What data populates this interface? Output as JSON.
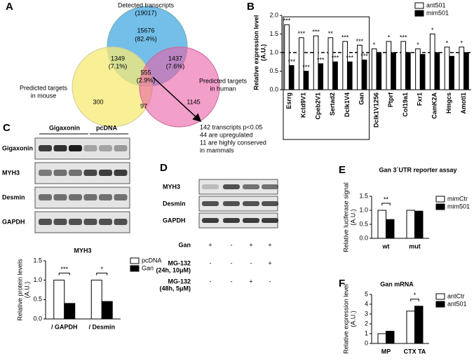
{
  "panels": {
    "labels": [
      "A",
      "B",
      "C",
      "D",
      "E",
      "F"
    ]
  },
  "venn": {
    "detected": [
      "Detected transcripts",
      "(19017)"
    ],
    "only_detected": [
      15676,
      "(82.4%)"
    ],
    "detected_mouse": [
      1349,
      "(7.1%)"
    ],
    "detected_human": [
      1437,
      "(7.6%)"
    ],
    "all_three": [
      555,
      "(2.9%)"
    ],
    "mouse_label": [
      "Predicted targets",
      "in mouse"
    ],
    "human_label": [
      "Predicted targets",
      "in human"
    ],
    "only_mouse": 300,
    "mouse_human": 97,
    "only_human": 1145,
    "note": [
      "142 transcripts p<0.05",
      "44 are upregulated",
      "11 are highly conserved",
      "in mammals"
    ]
  },
  "blot_c": {
    "headers": [
      "Gigaxonin",
      "pcDNA"
    ],
    "rows": [
      "Gigaxonin",
      "MYH3",
      "Desmin",
      "GAPDH"
    ]
  },
  "blot_d": {
    "rows": [
      "MYH3",
      "Desmin",
      "GAPDH"
    ],
    "conditions": [
      {
        "label": [
          "Gan"
        ],
        "signs": [
          "+",
          "-",
          "+",
          "+"
        ]
      },
      {
        "label": [
          "MG-132",
          "(24h, 10μM)"
        ],
        "signs": [
          "-",
          "-",
          "-",
          "+"
        ]
      },
      {
        "label": [
          "MG-132",
          "(48h, 5μM)"
        ],
        "signs": [
          "-",
          "-",
          "+",
          "-"
        ]
      }
    ]
  },
  "chart_data": [
    {
      "type": "bar",
      "ylabel": [
        "Relative expression level",
        "(A.U.)"
      ],
      "categories": [
        "Esrrg",
        "Kctd9V1",
        "Cpeb2V1",
        "Sertad2",
        "Dclk1V4",
        "Gan",
        "Dclk1V1256",
        "Ptprf",
        "Col19a1",
        "Fxr1",
        "CamK2A",
        "Hmgcs",
        "Amotl1"
      ],
      "series": [
        {
          "name": "ant501",
          "color": "#ffffff",
          "values": [
            1.75,
            1.4,
            1.45,
            1.4,
            1.3,
            1.2,
            1.1,
            1.3,
            1.3,
            1.1,
            1.5,
            1.15,
            1.15
          ],
          "stars": [
            "***",
            "***",
            "***",
            "**",
            "***",
            "***",
            "*",
            "*",
            "***",
            "*",
            "*",
            "*",
            "*"
          ]
        },
        {
          "name": "mim501",
          "color": "#000000",
          "values": [
            0.65,
            0.5,
            0.7,
            0.75,
            0.75,
            0.8,
            1.0,
            1.0,
            1.0,
            0.95,
            1.0,
            0.9,
            1.0
          ],
          "stars": [
            "***",
            "***",
            "***",
            "***",
            "***",
            "***",
            null,
            null,
            null,
            null,
            null,
            null,
            null
          ]
        }
      ],
      "ylim": [
        0,
        2
      ],
      "yticks": [
        {
          "value": 0,
          "label": "0.0"
        },
        {
          "value": 0.5,
          "label": "0.5"
        },
        {
          "value": 1,
          "label": "1.0"
        },
        {
          "value": 1.5,
          "label": "1.5"
        },
        {
          "value": 2,
          "label": "2.0"
        }
      ],
      "reference_line": 1,
      "legend": "top-right"
    },
    {
      "type": "bar",
      "title": "MYH3",
      "ylabel": [
        "Relative protein levels",
        "(A.U.)"
      ],
      "categories": [
        "/ GAPDH",
        "/ Desmin"
      ],
      "series": [
        {
          "name": "pcDNA",
          "color": "#ffffff",
          "values": [
            1.0,
            1.0
          ]
        },
        {
          "name": "Gan",
          "color": "#000000",
          "values": [
            0.4,
            0.45
          ]
        }
      ],
      "stars": [
        "***",
        "*"
      ],
      "ylim": [
        0,
        1.5
      ],
      "yticks": [
        {
          "value": 0,
          "label": "0.0"
        },
        {
          "value": 0.5,
          "label": "0.5"
        },
        {
          "value": 1,
          "label": "1.0"
        },
        {
          "value": 1.5,
          "label": "1.5"
        }
      ],
      "legend": "right"
    },
    {
      "type": "bar",
      "title": "Gan 3´UTR reporter assay",
      "ylabel": [
        "Relative luciferase signal",
        "(A.U.)"
      ],
      "categories": [
        "wt",
        "mut"
      ],
      "series": [
        {
          "name": "mimCtr",
          "color": "#ffffff",
          "values": [
            1.0,
            1.0
          ]
        },
        {
          "name": "mim501",
          "color": "#000000",
          "values": [
            0.67,
            0.97
          ]
        }
      ],
      "stars": [
        "**",
        null
      ],
      "ylim": [
        0,
        1.5
      ],
      "yticks": [
        {
          "value": 0,
          "label": "0.0"
        },
        {
          "value": 0.5,
          "label": "0.5"
        },
        {
          "value": 1,
          "label": "1.0"
        },
        {
          "value": 1.5,
          "label": "1.5"
        }
      ],
      "legend": "right"
    },
    {
      "type": "bar",
      "title": "Gan mRNA",
      "ylabel": [
        "Relative expression level",
        "(A.U.)"
      ],
      "categories": [
        "MP",
        "CTX TA"
      ],
      "series": [
        {
          "name": "antCtr",
          "color": "#ffffff",
          "values": [
            1.0,
            3.3
          ]
        },
        {
          "name": "ant501",
          "color": "#000000",
          "values": [
            1.25,
            3.8
          ]
        }
      ],
      "stars": [
        null,
        "*"
      ],
      "ylim": [
        0,
        5
      ],
      "yticks": [
        0,
        1,
        2,
        3,
        4,
        5
      ],
      "legend": "right"
    }
  ]
}
